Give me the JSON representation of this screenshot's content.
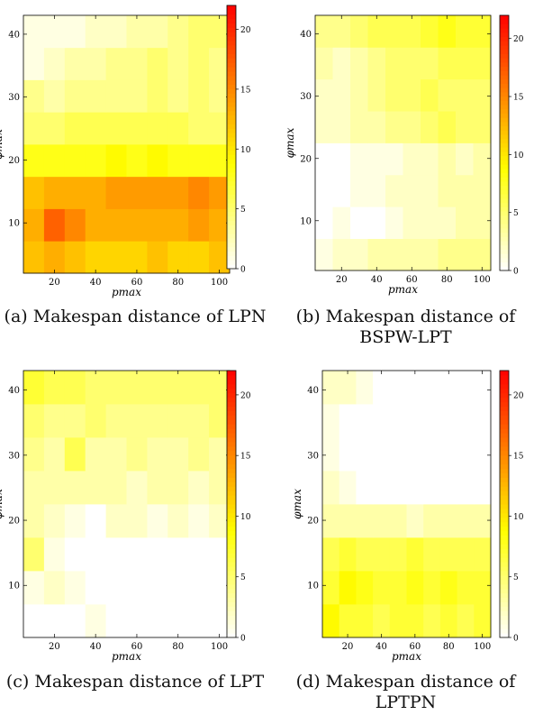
{
  "figure": {
    "panels": [
      {
        "caption_line1": "(a) Makespan distance of LPN",
        "caption_line2": ""
      },
      {
        "caption_line1": "(b)   Makespan   distance   of",
        "caption_line2": "BSPW-LPT"
      },
      {
        "caption_line1": "(c) Makespan distance of LPT",
        "caption_line2": ""
      },
      {
        "caption_line1": "(d)   Makespan   distance   of",
        "caption_line2": "LPTPN"
      }
    ]
  },
  "colors": {
    "low": "#ffffff",
    "mid": "#ffff00",
    "high": "#ff0000"
  },
  "chart_data": [
    {
      "type": "heatmap",
      "title": "",
      "xlabel": "pmax",
      "ylabel": "φmax",
      "xlim": [
        5,
        105
      ],
      "ylim": [
        2,
        43
      ],
      "xticks": [
        20,
        40,
        60,
        80,
        100
      ],
      "yticks": [
        10,
        20,
        30,
        40
      ],
      "colorbar_ticks": [
        0,
        5,
        10,
        15,
        20
      ],
      "color_range": [
        0,
        22
      ],
      "grid": false,
      "x": [
        10,
        20,
        30,
        40,
        50,
        60,
        70,
        80,
        90,
        100
      ],
      "y": [
        5,
        10,
        15,
        20,
        25,
        30,
        35,
        40
      ],
      "values": [
        [
          12,
          13,
          12,
          11,
          11,
          11,
          12,
          11,
          11,
          12
        ],
        [
          13,
          17,
          15,
          13,
          13,
          13,
          13,
          13,
          14,
          13
        ],
        [
          12,
          13,
          13,
          13,
          14,
          14,
          14,
          14,
          15,
          14
        ],
        [
          8,
          8,
          8,
          8,
          9,
          8,
          9,
          8,
          8,
          8
        ],
        [
          5,
          5,
          6,
          6,
          6,
          6,
          6,
          6,
          5,
          5
        ],
        [
          4,
          3,
          4,
          4,
          4,
          4,
          5,
          4,
          5,
          4
        ],
        [
          1,
          2,
          3,
          3,
          4,
          4,
          5,
          4,
          5,
          4
        ],
        [
          1,
          1,
          1,
          2,
          2,
          3,
          3,
          4,
          5,
          5
        ]
      ]
    },
    {
      "type": "heatmap",
      "title": "",
      "xlabel": "pmax",
      "ylabel": "φmax",
      "xlim": [
        5,
        105
      ],
      "ylim": [
        2,
        43
      ],
      "xticks": [
        20,
        40,
        60,
        80,
        100
      ],
      "yticks": [
        10,
        20,
        30,
        40
      ],
      "colorbar_ticks": [
        0,
        5,
        10,
        15,
        20
      ],
      "color_range": [
        0,
        22
      ],
      "grid": false,
      "x": [
        10,
        20,
        30,
        40,
        50,
        60,
        70,
        80,
        90,
        100
      ],
      "y": [
        5,
        10,
        15,
        20,
        25,
        30,
        35,
        40
      ],
      "values": [
        [
          1,
          2,
          2,
          3,
          3,
          3,
          3,
          4,
          4,
          4
        ],
        [
          0,
          1,
          0,
          0,
          1,
          2,
          2,
          2,
          3,
          3
        ],
        [
          0,
          0,
          1,
          1,
          2,
          2,
          2,
          3,
          3,
          3
        ],
        [
          0,
          0,
          1,
          1,
          1,
          2,
          2,
          3,
          2,
          3
        ],
        [
          2,
          2,
          3,
          3,
          4,
          4,
          5,
          6,
          5,
          5
        ],
        [
          2,
          2,
          3,
          4,
          5,
          5,
          6,
          5,
          5,
          5
        ],
        [
          3,
          2,
          3,
          4,
          5,
          5,
          5,
          6,
          6,
          6
        ],
        [
          4,
          4,
          5,
          6,
          6,
          6,
          7,
          8,
          7,
          7
        ]
      ]
    },
    {
      "type": "heatmap",
      "title": "",
      "xlabel": "pmax",
      "ylabel": "φmax",
      "xlim": [
        5,
        105
      ],
      "ylim": [
        2,
        43
      ],
      "xticks": [
        20,
        40,
        60,
        80,
        100
      ],
      "yticks": [
        10,
        20,
        30,
        40
      ],
      "colorbar_ticks": [
        0,
        5,
        10,
        15,
        20
      ],
      "color_range": [
        0,
        22
      ],
      "grid": false,
      "x": [
        10,
        20,
        30,
        40,
        50,
        60,
        70,
        80,
        90,
        100
      ],
      "y": [
        5,
        10,
        15,
        20,
        25,
        30,
        35,
        40
      ],
      "values": [
        [
          0,
          0,
          0,
          1,
          0,
          0,
          0,
          0,
          0,
          0
        ],
        [
          1,
          2,
          1,
          0,
          0,
          0,
          0,
          0,
          0,
          0
        ],
        [
          5,
          1,
          0,
          0,
          0,
          0,
          0,
          0,
          0,
          0
        ],
        [
          3,
          2,
          1,
          0,
          2,
          2,
          1,
          2,
          1,
          2
        ],
        [
          3,
          3,
          3,
          3,
          3,
          2,
          3,
          3,
          2,
          3
        ],
        [
          4,
          3,
          6,
          3,
          3,
          4,
          3,
          3,
          4,
          3
        ],
        [
          5,
          4,
          4,
          5,
          4,
          4,
          4,
          4,
          4,
          5
        ],
        [
          7,
          6,
          6,
          5,
          5,
          5,
          5,
          5,
          5,
          5
        ]
      ]
    },
    {
      "type": "heatmap",
      "title": "",
      "xlabel": "pmax",
      "ylabel": "φmax",
      "xlim": [
        5,
        105
      ],
      "ylim": [
        2,
        43
      ],
      "xticks": [
        20,
        40,
        60,
        80,
        100
      ],
      "yticks": [
        10,
        20,
        30,
        40
      ],
      "colorbar_ticks": [
        0,
        5,
        10,
        15,
        20
      ],
      "color_range": [
        0,
        22
      ],
      "grid": false,
      "x": [
        10,
        20,
        30,
        40,
        50,
        60,
        70,
        80,
        90,
        100
      ],
      "y": [
        5,
        10,
        15,
        20,
        25,
        30,
        35,
        40
      ],
      "values": [
        [
          9,
          7,
          7,
          6,
          7,
          7,
          6,
          7,
          6,
          7
        ],
        [
          7,
          9,
          8,
          7,
          7,
          8,
          7,
          8,
          7,
          7
        ],
        [
          6,
          7,
          6,
          6,
          6,
          7,
          6,
          6,
          6,
          6
        ],
        [
          3,
          3,
          3,
          3,
          3,
          2,
          3,
          3,
          3,
          3
        ],
        [
          2,
          1,
          0,
          0,
          0,
          0,
          0,
          0,
          0,
          0
        ],
        [
          1,
          0,
          0,
          0,
          0,
          0,
          0,
          0,
          0,
          0
        ],
        [
          1,
          0,
          0,
          0,
          0,
          0,
          0,
          0,
          0,
          0
        ],
        [
          2,
          2,
          1,
          0,
          0,
          0,
          0,
          0,
          0,
          0
        ]
      ]
    }
  ]
}
